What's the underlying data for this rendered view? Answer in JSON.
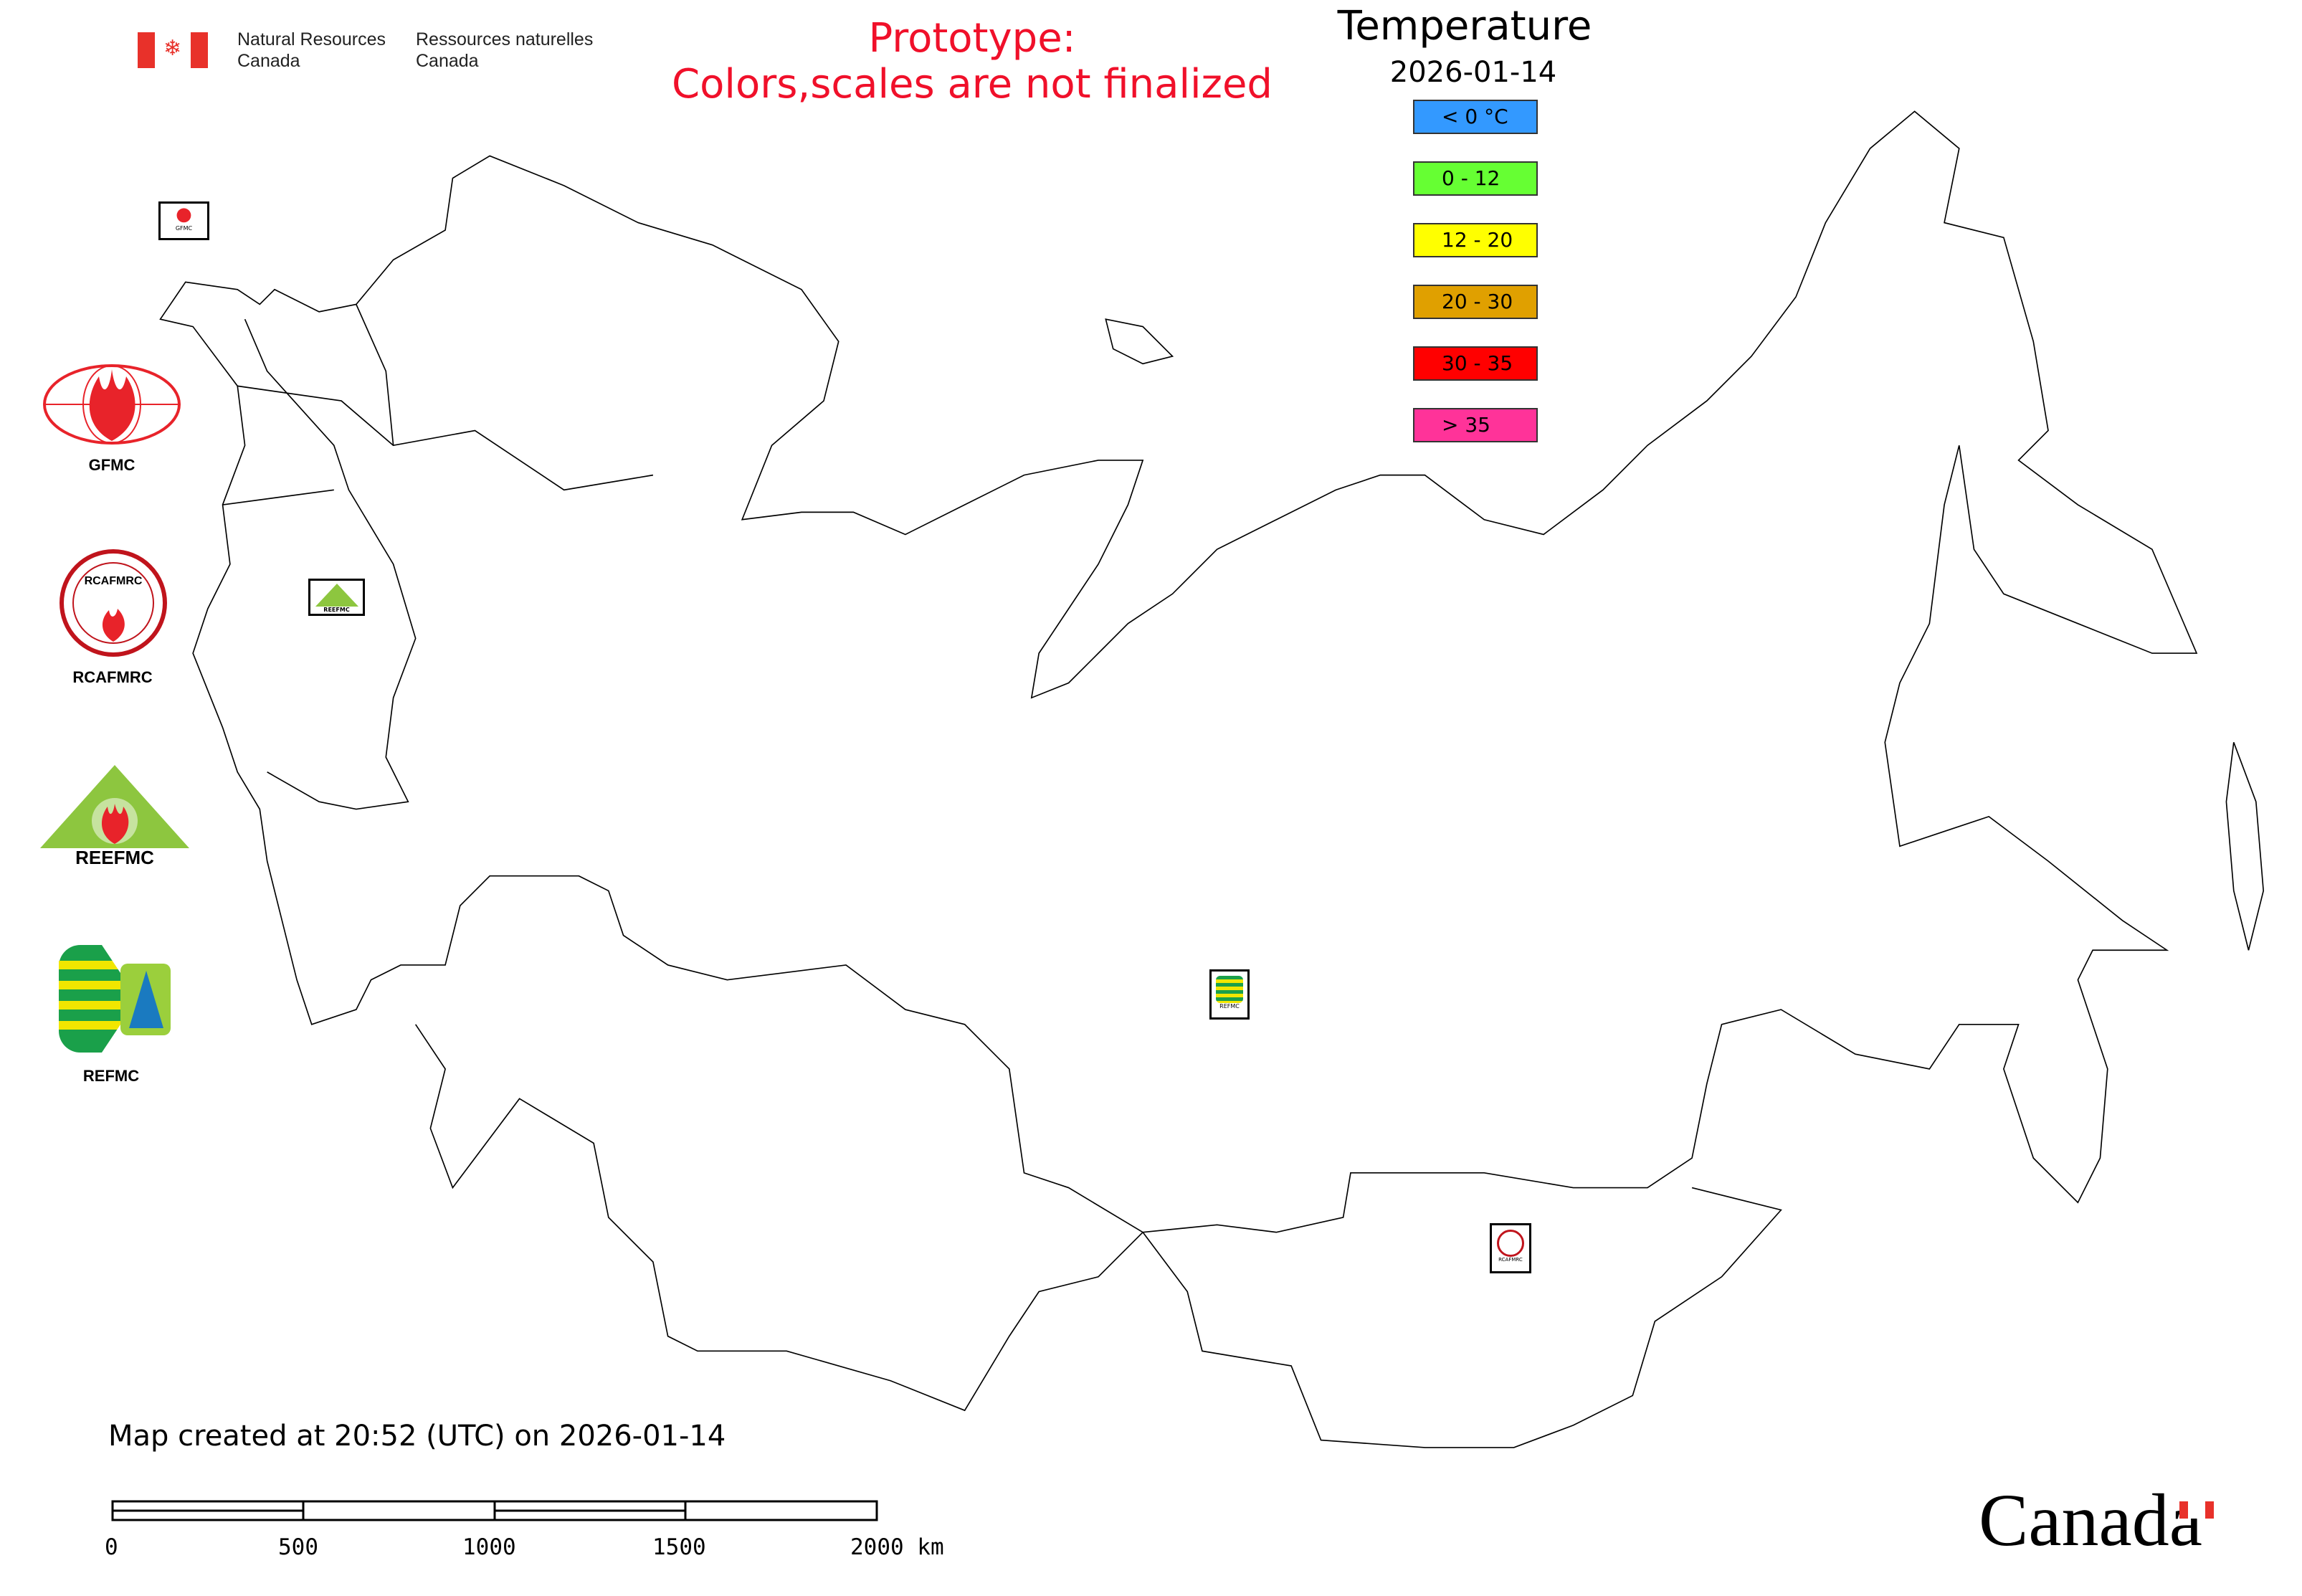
{
  "header": {
    "org_en_line1": "Natural Resources",
    "org_en_line2": "Canada",
    "org_fr_line1": "Ressources naturelles",
    "org_fr_line2": "Canada",
    "prototype_line1": "Prototype:",
    "prototype_line2": "Colors,scales are not finalized",
    "prototype_color": "#f0102a"
  },
  "legend": {
    "title": "Temperature",
    "date": "2026-01-14",
    "items": [
      {
        "label": "< 0 °C",
        "color": "#3399ff"
      },
      {
        "label": "0 - 12",
        "color": "#66ff33"
      },
      {
        "label": "12 - 20",
        "color": "#ffff00"
      },
      {
        "label": "20 - 30",
        "color": "#e0a000"
      },
      {
        "label": "30 - 35",
        "color": "#ff0000"
      },
      {
        "label": "> 35",
        "color": "#ff3399"
      }
    ]
  },
  "logos": {
    "gfmc": "GFMC",
    "rcafmrc": "RCAFMRC",
    "reefmc": "REEFMC",
    "refmc": "REFMC",
    "mini_gfmc": "GFMC",
    "mini_reefmc": "REEFMC",
    "mini_refmc": "REFMC",
    "mini_rcafmrc": "RCAFMRC"
  },
  "footer": {
    "created": "Map created at 20:52 (UTC) on 2026-01-14",
    "scale_labels": [
      "0",
      "500",
      "1000",
      "1500",
      "2000 km"
    ],
    "wordmark": "Canada"
  }
}
